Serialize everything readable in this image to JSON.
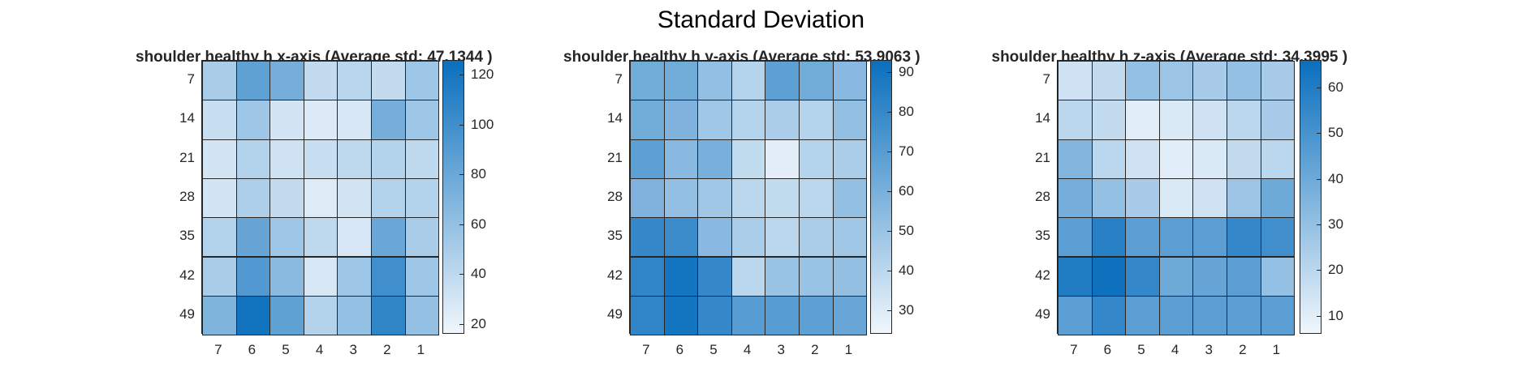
{
  "suptitle": "Standard Deviation",
  "chart_data": [
    {
      "type": "heatmap",
      "title": "shoulder healthy h x-axis (Average std: 47.1344 )",
      "x_categories": [
        "7",
        "6",
        "5",
        "4",
        "3",
        "2",
        "1"
      ],
      "y_categories": [
        "7",
        "14",
        "21",
        "28",
        "35",
        "42",
        "49"
      ],
      "values": [
        [
          50,
          85,
          75,
          38,
          42,
          38,
          55
        ],
        [
          35,
          55,
          30,
          26,
          28,
          75,
          55
        ],
        [
          30,
          45,
          32,
          35,
          40,
          45,
          40
        ],
        [
          30,
          48,
          38,
          25,
          30,
          45,
          45
        ],
        [
          45,
          82,
          55,
          40,
          28,
          80,
          50
        ],
        [
          50,
          92,
          65,
          28,
          55,
          100,
          55
        ],
        [
          70,
          122,
          85,
          45,
          60,
          108,
          60
        ]
      ],
      "colorbar": {
        "min": 16,
        "max": 126,
        "ticks": [
          20,
          40,
          60,
          80,
          100,
          120
        ]
      },
      "colormap": [
        "#f0f6fc",
        "#0a6fbd"
      ]
    },
    {
      "type": "heatmap",
      "title": "shoulder healthy h y-axis (Average std: 53.9063 )",
      "x_categories": [
        "7",
        "6",
        "5",
        "4",
        "3",
        "2",
        "1"
      ],
      "y_categories": [
        "7",
        "14",
        "21",
        "28",
        "35",
        "42",
        "49"
      ],
      "values": [
        [
          62,
          62,
          52,
          42,
          68,
          62,
          55
        ],
        [
          62,
          58,
          48,
          42,
          45,
          42,
          52
        ],
        [
          68,
          55,
          60,
          38,
          28,
          42,
          45
        ],
        [
          58,
          52,
          48,
          40,
          38,
          40,
          52
        ],
        [
          80,
          78,
          55,
          45,
          40,
          45,
          48
        ],
        [
          82,
          90,
          80,
          40,
          50,
          50,
          52
        ],
        [
          82,
          90,
          80,
          70,
          70,
          68,
          65
        ]
      ],
      "colorbar": {
        "min": 24,
        "max": 93,
        "ticks": [
          30,
          40,
          50,
          60,
          70,
          80,
          90
        ]
      },
      "colormap": [
        "#f0f6fc",
        "#0a6fbd"
      ]
    },
    {
      "type": "heatmap",
      "title": "shoulder healthy h z-axis (Average std: 34.3995 )",
      "x_categories": [
        "7",
        "6",
        "5",
        "4",
        "3",
        "2",
        "1"
      ],
      "y_categories": [
        "7",
        "14",
        "21",
        "28",
        "35",
        "42",
        "49"
      ],
      "values": [
        [
          15,
          18,
          30,
          28,
          25,
          30,
          25
        ],
        [
          20,
          18,
          10,
          12,
          15,
          20,
          25
        ],
        [
          35,
          20,
          15,
          10,
          12,
          18,
          20
        ],
        [
          38,
          30,
          25,
          12,
          15,
          28,
          40
        ],
        [
          45,
          58,
          45,
          45,
          45,
          55,
          52
        ],
        [
          60,
          65,
          55,
          40,
          42,
          45,
          30
        ],
        [
          45,
          55,
          45,
          45,
          45,
          45,
          45
        ]
      ],
      "colorbar": {
        "min": 6,
        "max": 66,
        "ticks": [
          10,
          20,
          30,
          40,
          50,
          60
        ]
      },
      "colormap": [
        "#f0f6fc",
        "#0a6fbd"
      ]
    }
  ]
}
